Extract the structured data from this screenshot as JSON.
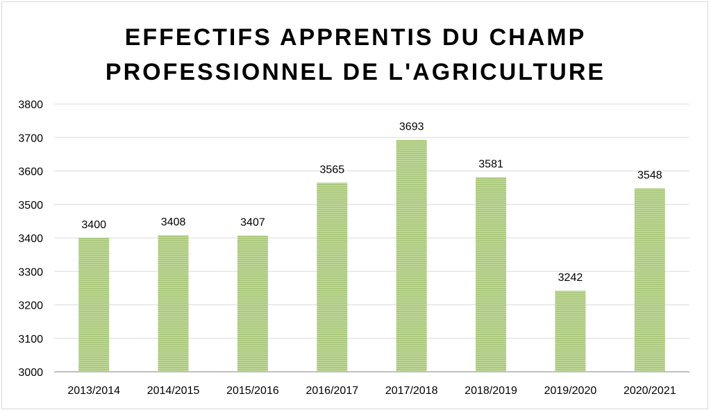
{
  "chart_data": {
    "type": "bar",
    "title_lines": [
      "EFFECTIFS APPRENTIS DU CHAMP",
      "PROFESSIONNEL DE L'AGRICULTURE"
    ],
    "categories": [
      "2013/2014",
      "2014/2015",
      "2015/2016",
      "2016/2017",
      "2017/2018",
      "2018/2019",
      "2019/2020",
      "2020/2021"
    ],
    "values": [
      3400,
      3408,
      3407,
      3565,
      3693,
      3581,
      3242,
      3548
    ],
    "data_labels": [
      "3400",
      "3408",
      "3407",
      "3565",
      "3693",
      "3581",
      "3242",
      "3548"
    ],
    "xlabel": "",
    "ylabel": "",
    "ylim": [
      3000,
      3800
    ],
    "y_ticks": [
      3000,
      3100,
      3200,
      3300,
      3400,
      3500,
      3600,
      3700,
      3800
    ],
    "grid": true,
    "legend": "none",
    "bar_color": "#a9c77a",
    "bar_stripe_color": "#c6dca3",
    "grid_color": "#d9d9d9",
    "axis_color": "#bfbfbf"
  }
}
